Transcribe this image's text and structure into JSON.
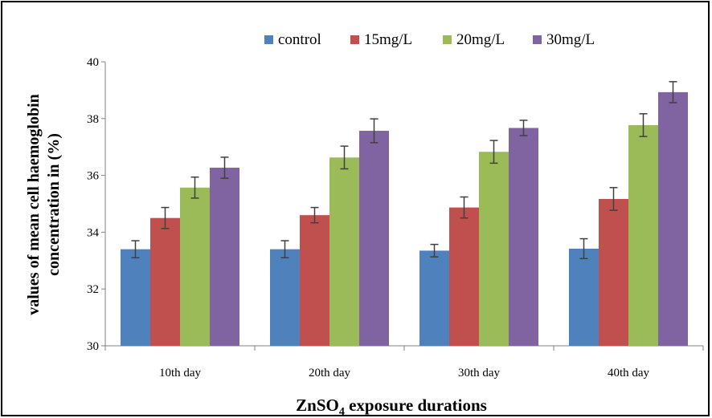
{
  "chart_data": {
    "type": "bar",
    "categories": [
      "10th day",
      "20th day",
      "30th day",
      "40th day"
    ],
    "series": [
      {
        "name": "control",
        "color": "#4f81bd",
        "values": [
          33.4,
          33.4,
          33.35,
          33.42
        ],
        "errors": [
          0.3,
          0.3,
          0.22,
          0.35
        ]
      },
      {
        "name": "15mg/L",
        "color": "#c0504d",
        "values": [
          34.5,
          34.6,
          34.87,
          35.17
        ],
        "errors": [
          0.37,
          0.27,
          0.37,
          0.4
        ]
      },
      {
        "name": "20mg/L",
        "color": "#9bbb59",
        "values": [
          35.57,
          36.63,
          36.83,
          37.77
        ],
        "errors": [
          0.37,
          0.4,
          0.4,
          0.4
        ]
      },
      {
        "name": "30mg/L",
        "color": "#8064a2",
        "values": [
          36.27,
          37.57,
          37.67,
          38.93
        ],
        "errors": [
          0.37,
          0.42,
          0.27,
          0.37
        ]
      }
    ],
    "ylim": [
      30,
      40
    ],
    "yticks": [
      "30",
      "32",
      "34",
      "36",
      "38",
      "40"
    ],
    "ylabel_line1": "values of mean cell haemoglobin",
    "ylabel_line2": "concentration in (%)",
    "xlabel_main": "ZnSO",
    "xlabel_sub": "4",
    "xlabel_rest": " exposure durations",
    "legend_position": "top",
    "grid": false
  }
}
